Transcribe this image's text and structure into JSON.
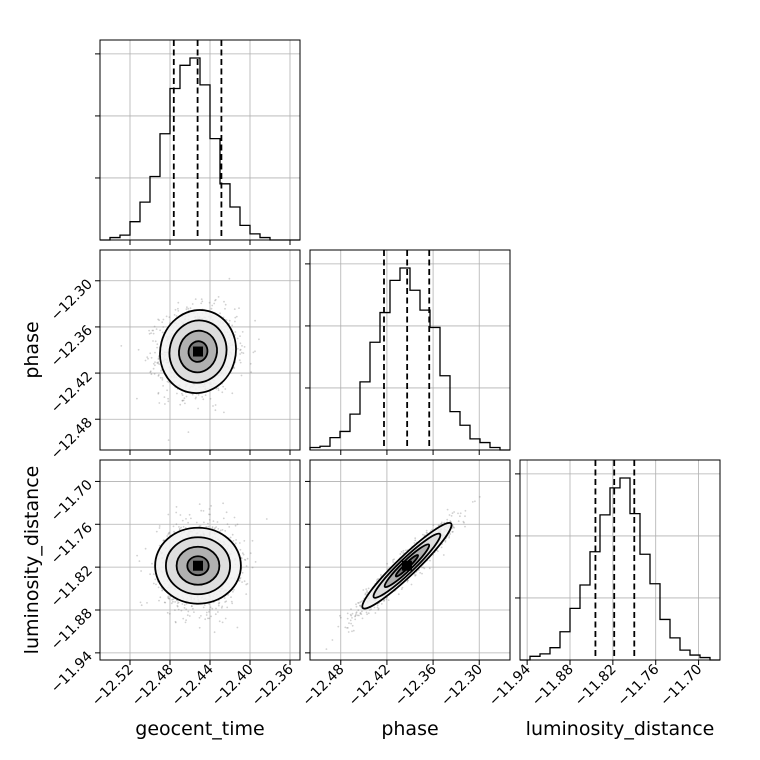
{
  "chart_data": {
    "type": "corner",
    "parameters": [
      "geocent_time",
      "phase",
      "luminosity_distance"
    ],
    "xlabels": {
      "geocent_time": "geocent_time",
      "phase": "phase",
      "luminosity_distance": "luminosity_distance"
    },
    "ylabels": {
      "phase": "phase",
      "luminosity_distance": "luminosity_distance"
    },
    "ranges": {
      "geocent_time": [
        -12.55,
        -12.35
      ],
      "phase": [
        -12.52,
        -12.26
      ],
      "luminosity_distance": [
        -11.95,
        -11.67
      ]
    },
    "ticks": {
      "geocent_time": [
        -12.52,
        -12.48,
        -12.44,
        -12.4,
        -12.36
      ],
      "phase": [
        -12.48,
        -12.42,
        -12.36,
        -12.3
      ],
      "luminosity_distance": [
        -11.94,
        -11.88,
        -11.82,
        -11.76,
        -11.7
      ]
    },
    "tick_labels": {
      "geocent_time": [
        "−12.52",
        "−12.48",
        "−12.44",
        "−12.40",
        "−12.36"
      ],
      "phase": [
        "−12.48",
        "−12.42",
        "−12.36",
        "−12.30"
      ],
      "luminosity_distance": [
        "−11.94",
        "−11.88",
        "−11.82",
        "−11.76",
        "−11.70"
      ]
    },
    "quantiles": {
      "geocent_time": [
        -12.4762,
        -12.4524,
        -12.4286
      ],
      "phase": [
        -12.4238,
        -12.3937,
        -12.365
      ],
      "luminosity_distance": [
        -11.8444,
        -11.8181,
        -11.79
      ]
    },
    "histograms": {
      "geocent_time": {
        "edges": [
          -12.55,
          -12.54,
          -12.53,
          -12.52,
          -12.51,
          -12.5,
          -12.49,
          -12.48,
          -12.47,
          -12.46,
          -12.45,
          -12.44,
          -12.43,
          -12.42,
          -12.41,
          -12.4,
          -12.39,
          -12.38,
          -12.37,
          -12.36,
          -12.35
        ],
        "counts": [
          0,
          2,
          4,
          15,
          31,
          52,
          87,
          124,
          143,
          149,
          127,
          83,
          46,
          27,
          12,
          5,
          2,
          0,
          0,
          0
        ]
      },
      "phase": {
        "edges": [
          -12.52,
          -12.507,
          -12.494,
          -12.481,
          -12.468,
          -12.455,
          -12.442,
          -12.429,
          -12.416,
          -12.403,
          -12.39,
          -12.377,
          -12.364,
          -12.351,
          -12.338,
          -12.325,
          -12.312,
          -12.299,
          -12.286,
          -12.273,
          -12.26
        ],
        "counts": [
          2,
          3,
          10,
          15,
          29,
          55,
          87,
          111,
          137,
          147,
          129,
          113,
          99,
          60,
          31,
          20,
          9,
          6,
          2,
          0
        ]
      },
      "luminosity_distance": {
        "edges": [
          -11.95,
          -11.936,
          -11.922,
          -11.908,
          -11.894,
          -11.88,
          -11.866,
          -11.852,
          -11.838,
          -11.824,
          -11.81,
          -11.796,
          -11.782,
          -11.768,
          -11.754,
          -11.74,
          -11.726,
          -11.712,
          -11.698,
          -11.684,
          -11.67
        ],
        "counts": [
          0,
          3,
          5,
          10,
          23,
          42,
          61,
          88,
          118,
          140,
          148,
          119,
          86,
          62,
          33,
          18,
          8,
          4,
          2,
          0
        ]
      }
    },
    "correlations": [
      {
        "x": "geocent_time",
        "y": "phase",
        "mean_x": -12.452,
        "mean_y": -12.392,
        "sd_x": 0.019,
        "sd_y": 0.027,
        "rho": 0.05
      },
      {
        "x": "geocent_time",
        "y": "luminosity_distance",
        "mean_x": -12.452,
        "mean_y": -11.818,
        "sd_x": 0.019,
        "sd_y": 0.03,
        "rho": 0.0
      },
      {
        "x": "phase",
        "y": "luminosity_distance",
        "mean_x": -12.394,
        "mean_y": -11.818,
        "sd_x": 0.029,
        "sd_y": 0.03,
        "rho": 0.95
      }
    ],
    "contour_levels_sigma": [
      0.5,
      1.0,
      1.5,
      2.0
    ],
    "grid": true
  }
}
